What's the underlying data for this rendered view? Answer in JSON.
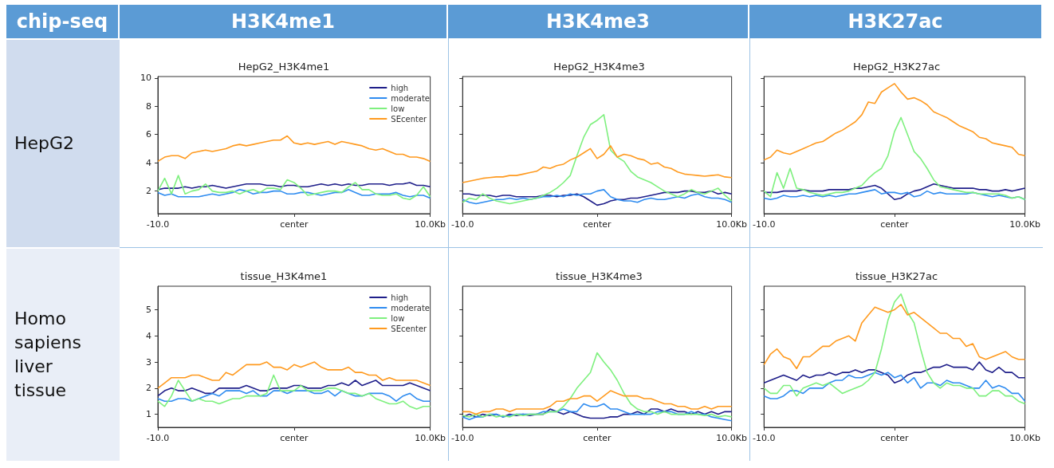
{
  "chart_data": [
    {
      "type": "other",
      "annotations": [
        "chip-seq",
        "H3K4me1",
        "H3K4me3",
        "H3K27ac",
        "HepG2",
        "Homo sapiens liver tissue"
      ]
    },
    {
      "type": "line",
      "title": "HepG2_H3K4me1",
      "legend": "top right",
      "xlim": [
        -10,
        10
      ],
      "xticks": [
        {
          "value": -10,
          "label": "-10.0"
        },
        {
          "value": 0,
          "label": "center"
        },
        {
          "value": 10,
          "label": "10.0Kb"
        }
      ],
      "ylim": [
        0.4,
        10.1
      ],
      "yticks": [
        2,
        4,
        6,
        8,
        10
      ],
      "x": [
        -10,
        -9.5,
        -9,
        -8.5,
        -8,
        -7.5,
        -7,
        -6.5,
        -6,
        -5.5,
        -5,
        -4.5,
        -4,
        -3.5,
        -3,
        -2.5,
        -2,
        -1.5,
        -1,
        -0.5,
        0,
        0.5,
        1,
        1.5,
        2,
        2.5,
        3,
        3.5,
        4,
        4.5,
        5,
        5.5,
        6,
        6.5,
        7,
        7.5,
        8,
        8.5,
        9,
        9.5,
        10
      ],
      "series": [
        {
          "name": "high",
          "color": "#1f1f8a",
          "values": [
            2.1,
            2.2,
            2.2,
            2.2,
            2.3,
            2.2,
            2.3,
            2.3,
            2.4,
            2.3,
            2.2,
            2.3,
            2.4,
            2.5,
            2.5,
            2.5,
            2.4,
            2.4,
            2.3,
            2.4,
            2.4,
            2.3,
            2.3,
            2.4,
            2.5,
            2.4,
            2.5,
            2.4,
            2.5,
            2.4,
            2.4,
            2.5,
            2.5,
            2.5,
            2.4,
            2.5,
            2.5,
            2.6,
            2.4,
            2.4,
            2.3
          ]
        },
        {
          "name": "moderate",
          "color": "#2f8cf0",
          "values": [
            1.9,
            1.7,
            1.8,
            1.6,
            1.6,
            1.6,
            1.6,
            1.7,
            1.8,
            1.7,
            1.8,
            1.9,
            2.1,
            2.0,
            1.8,
            1.9,
            1.9,
            2.0,
            2.0,
            1.8,
            1.8,
            1.9,
            1.9,
            1.8,
            1.7,
            1.8,
            1.9,
            1.9,
            2.1,
            1.9,
            1.7,
            1.7,
            1.8,
            1.8,
            1.8,
            1.9,
            1.7,
            1.6,
            1.7,
            1.7,
            1.5
          ]
        },
        {
          "name": "low",
          "color": "#7ef07e",
          "values": [
            2.0,
            2.9,
            1.8,
            3.1,
            1.8,
            2.0,
            2.1,
            2.5,
            2.0,
            1.9,
            1.9,
            2.0,
            1.8,
            2.0,
            2.1,
            1.9,
            2.2,
            2.2,
            2.1,
            2.8,
            2.6,
            2.2,
            1.7,
            1.8,
            1.9,
            2.0,
            2.0,
            1.9,
            2.3,
            2.6,
            2.1,
            2.1,
            1.8,
            1.7,
            1.7,
            1.8,
            1.5,
            1.4,
            1.7,
            2.3,
            1.6
          ]
        },
        {
          "name": "SEcenter",
          "color": "#ff9a1f",
          "values": [
            4.1,
            4.4,
            4.5,
            4.5,
            4.3,
            4.7,
            4.8,
            4.9,
            4.8,
            4.9,
            5.0,
            5.2,
            5.3,
            5.2,
            5.3,
            5.4,
            5.5,
            5.6,
            5.6,
            5.9,
            5.4,
            5.3,
            5.4,
            5.3,
            5.4,
            5.5,
            5.3,
            5.5,
            5.4,
            5.3,
            5.2,
            5.0,
            4.9,
            5.0,
            4.8,
            4.6,
            4.6,
            4.4,
            4.4,
            4.3,
            4.1
          ]
        }
      ]
    },
    {
      "type": "line",
      "title": "HepG2_H3K4me3",
      "legend": false,
      "tick_labels": "x",
      "xlim": [
        -10,
        10
      ],
      "xticks": [
        {
          "value": -10,
          "label": "-10.0"
        },
        {
          "value": 0,
          "label": "center"
        },
        {
          "value": 10,
          "label": "10.0Kb"
        }
      ],
      "ylim": [
        0.4,
        10.1
      ],
      "yticks": [
        {
          "value": 2,
          "label": null
        },
        {
          "value": 4,
          "label": null
        },
        {
          "value": 6,
          "label": null
        },
        {
          "value": 8,
          "label": null
        },
        {
          "value": 10,
          "label": null
        }
      ],
      "x": [
        -10,
        -9.5,
        -9,
        -8.5,
        -8,
        -7.5,
        -7,
        -6.5,
        -6,
        -5.5,
        -5,
        -4.5,
        -4,
        -3.5,
        -3,
        -2.5,
        -2,
        -1.5,
        -1,
        -0.5,
        0,
        0.5,
        1,
        1.5,
        2,
        2.5,
        3,
        3.5,
        4,
        4.5,
        5,
        5.5,
        6,
        6.5,
        7,
        7.5,
        8,
        8.5,
        9,
        9.5,
        10
      ],
      "series": [
        {
          "color": "#1f1f8a",
          "values": [
            1.8,
            1.8,
            1.7,
            1.7,
            1.7,
            1.6,
            1.7,
            1.7,
            1.6,
            1.6,
            1.6,
            1.6,
            1.7,
            1.7,
            1.6,
            1.7,
            1.7,
            1.8,
            1.6,
            1.3,
            1.0,
            1.1,
            1.3,
            1.4,
            1.4,
            1.5,
            1.5,
            1.6,
            1.7,
            1.8,
            1.9,
            1.9,
            1.9,
            2.0,
            2.0,
            1.9,
            1.9,
            2.0,
            1.8,
            1.9,
            1.8
          ]
        },
        {
          "color": "#2f8cf0",
          "values": [
            1.4,
            1.2,
            1.1,
            1.2,
            1.3,
            1.4,
            1.4,
            1.5,
            1.4,
            1.5,
            1.4,
            1.5,
            1.6,
            1.6,
            1.7,
            1.6,
            1.8,
            1.7,
            1.8,
            1.8,
            2.0,
            2.1,
            1.6,
            1.4,
            1.3,
            1.3,
            1.2,
            1.4,
            1.5,
            1.4,
            1.4,
            1.5,
            1.6,
            1.5,
            1.7,
            1.8,
            1.6,
            1.5,
            1.5,
            1.4,
            1.2
          ]
        },
        {
          "color": "#7ef07e",
          "values": [
            1.2,
            1.5,
            1.4,
            1.8,
            1.5,
            1.3,
            1.2,
            1.1,
            1.2,
            1.3,
            1.4,
            1.5,
            1.7,
            1.9,
            2.2,
            2.6,
            3.1,
            4.5,
            5.8,
            6.7,
            7.0,
            7.4,
            4.9,
            4.4,
            4.1,
            3.4,
            3.0,
            2.8,
            2.6,
            2.3,
            2.0,
            1.8,
            1.6,
            1.8,
            2.1,
            1.9,
            1.8,
            2.0,
            2.2,
            1.7,
            1.3
          ]
        },
        {
          "color": "#ff9a1f",
          "values": [
            2.6,
            2.7,
            2.8,
            2.9,
            2.95,
            3.0,
            3.0,
            3.1,
            3.1,
            3.2,
            3.3,
            3.4,
            3.7,
            3.6,
            3.8,
            3.9,
            4.2,
            4.4,
            4.7,
            5.0,
            4.3,
            4.6,
            5.2,
            4.4,
            4.6,
            4.5,
            4.3,
            4.2,
            3.9,
            4.0,
            3.7,
            3.6,
            3.35,
            3.2,
            3.15,
            3.1,
            3.05,
            3.1,
            3.15,
            3.0,
            2.95
          ]
        }
      ]
    },
    {
      "type": "line",
      "title": "HepG2_H3K27ac",
      "legend": false,
      "tick_labels": "x",
      "xlim": [
        -10,
        10
      ],
      "xticks": [
        {
          "value": -10,
          "label": "-10.0"
        },
        {
          "value": 0,
          "label": "center"
        },
        {
          "value": 10,
          "label": "10.0Kb"
        }
      ],
      "ylim": [
        0.4,
        10.1
      ],
      "yticks": [
        {
          "value": 2,
          "label": null
        },
        {
          "value": 4,
          "label": null
        },
        {
          "value": 6,
          "label": null
        },
        {
          "value": 8,
          "label": null
        },
        {
          "value": 10,
          "label": null
        }
      ],
      "x": [
        -10,
        -9.5,
        -9,
        -8.5,
        -8,
        -7.5,
        -7,
        -6.5,
        -6,
        -5.5,
        -5,
        -4.5,
        -4,
        -3.5,
        -3,
        -2.5,
        -2,
        -1.5,
        -1,
        -0.5,
        0,
        0.5,
        1,
        1.5,
        2,
        2.5,
        3,
        3.5,
        4,
        4.5,
        5,
        5.5,
        6,
        6.5,
        7,
        7.5,
        8,
        8.5,
        9,
        9.5,
        10
      ],
      "series": [
        {
          "color": "#1f1f8a",
          "values": [
            1.9,
            1.9,
            1.9,
            2.0,
            2.0,
            2.0,
            2.1,
            2.0,
            2.0,
            2.0,
            2.1,
            2.1,
            2.1,
            2.1,
            2.2,
            2.2,
            2.3,
            2.4,
            2.2,
            1.8,
            1.4,
            1.5,
            1.8,
            2.0,
            2.1,
            2.3,
            2.5,
            2.4,
            2.3,
            2.2,
            2.2,
            2.2,
            2.2,
            2.1,
            2.1,
            2.0,
            2.0,
            2.1,
            2.0,
            2.1,
            2.2
          ]
        },
        {
          "color": "#2f8cf0",
          "values": [
            1.5,
            1.4,
            1.5,
            1.7,
            1.6,
            1.6,
            1.7,
            1.6,
            1.7,
            1.6,
            1.7,
            1.6,
            1.7,
            1.8,
            1.8,
            1.9,
            2.0,
            2.1,
            1.8,
            1.9,
            1.9,
            1.8,
            1.9,
            1.6,
            1.7,
            2.0,
            1.8,
            1.9,
            1.8,
            1.8,
            1.8,
            1.8,
            1.9,
            1.8,
            1.7,
            1.6,
            1.7,
            1.6,
            1.5,
            1.6,
            1.4
          ]
        },
        {
          "color": "#7ef07e",
          "values": [
            2.0,
            1.6,
            3.3,
            2.2,
            3.6,
            2.2,
            2.1,
            1.9,
            1.8,
            1.7,
            1.8,
            1.9,
            1.9,
            2.0,
            2.2,
            2.4,
            2.9,
            3.3,
            3.6,
            4.5,
            6.2,
            7.2,
            6.0,
            4.8,
            4.3,
            3.6,
            2.8,
            2.3,
            2.2,
            2.1,
            2.0,
            1.9,
            1.9,
            1.8,
            1.8,
            1.8,
            1.8,
            1.7,
            1.5,
            1.6,
            1.4
          ]
        },
        {
          "color": "#ff9a1f",
          "values": [
            4.2,
            4.4,
            4.9,
            4.7,
            4.6,
            4.8,
            5.0,
            5.2,
            5.4,
            5.5,
            5.8,
            6.1,
            6.3,
            6.6,
            6.9,
            7.4,
            8.3,
            8.2,
            9.0,
            9.3,
            9.6,
            9.0,
            8.5,
            8.6,
            8.4,
            8.1,
            7.6,
            7.4,
            7.2,
            6.9,
            6.6,
            6.4,
            6.2,
            5.8,
            5.7,
            5.4,
            5.3,
            5.2,
            5.1,
            4.6,
            4.5
          ]
        }
      ]
    },
    {
      "type": "line",
      "title": "tissue_H3K4me1",
      "legend": "top right",
      "xlim": [
        -10,
        10
      ],
      "xticks": [
        {
          "value": -10,
          "label": "-10.0"
        },
        {
          "value": 0,
          "label": "center"
        },
        {
          "value": 10,
          "label": "10.0Kb"
        }
      ],
      "ylim": [
        0.5,
        5.9
      ],
      "yticks": [
        1,
        2,
        3,
        4,
        5
      ],
      "x": [
        -10,
        -9.5,
        -9,
        -8.5,
        -8,
        -7.5,
        -7,
        -6.5,
        -6,
        -5.5,
        -5,
        -4.5,
        -4,
        -3.5,
        -3,
        -2.5,
        -2,
        -1.5,
        -1,
        -0.5,
        0,
        0.5,
        1,
        1.5,
        2,
        2.5,
        3,
        3.5,
        4,
        4.5,
        5,
        5.5,
        6,
        6.5,
        7,
        7.5,
        8,
        8.5,
        9,
        9.5,
        10
      ],
      "series": [
        {
          "name": "high",
          "color": "#1f1f8a",
          "values": [
            1.7,
            1.9,
            2.0,
            1.9,
            1.9,
            2.0,
            1.9,
            1.8,
            1.8,
            2.0,
            2.0,
            2.0,
            2.0,
            2.1,
            2.0,
            1.9,
            1.9,
            2.0,
            2.0,
            2.0,
            2.1,
            2.1,
            2.0,
            2.0,
            2.0,
            2.1,
            2.1,
            2.2,
            2.1,
            2.3,
            2.1,
            2.2,
            2.3,
            2.1,
            2.1,
            2.1,
            2.1,
            2.2,
            2.1,
            2.0,
            1.9
          ]
        },
        {
          "name": "moderate",
          "color": "#2f8cf0",
          "values": [
            1.6,
            1.5,
            1.5,
            1.6,
            1.6,
            1.5,
            1.6,
            1.7,
            1.8,
            1.7,
            1.9,
            1.9,
            1.9,
            1.8,
            1.9,
            1.7,
            1.7,
            1.9,
            1.9,
            1.8,
            1.9,
            1.9,
            1.9,
            1.8,
            1.8,
            1.9,
            1.7,
            1.9,
            1.8,
            1.7,
            1.7,
            1.8,
            1.8,
            1.8,
            1.7,
            1.5,
            1.7,
            1.8,
            1.6,
            1.5,
            1.5
          ]
        },
        {
          "name": "low",
          "color": "#7ef07e",
          "values": [
            1.5,
            1.3,
            1.7,
            2.3,
            1.9,
            1.5,
            1.6,
            1.5,
            1.5,
            1.4,
            1.5,
            1.6,
            1.6,
            1.7,
            1.7,
            1.7,
            1.8,
            2.5,
            1.9,
            1.9,
            1.9,
            2.1,
            1.9,
            1.9,
            1.9,
            2.0,
            2.0,
            1.9,
            1.8,
            1.8,
            1.7,
            1.8,
            1.6,
            1.5,
            1.4,
            1.4,
            1.5,
            1.3,
            1.2,
            1.3,
            1.3
          ]
        },
        {
          "name": "SEcenter",
          "color": "#ff9a1f",
          "values": [
            2.0,
            2.2,
            2.4,
            2.4,
            2.4,
            2.5,
            2.5,
            2.4,
            2.3,
            2.3,
            2.6,
            2.5,
            2.7,
            2.9,
            2.9,
            2.9,
            3.0,
            2.8,
            2.8,
            2.7,
            2.9,
            2.8,
            2.9,
            3.0,
            2.8,
            2.7,
            2.7,
            2.7,
            2.8,
            2.6,
            2.6,
            2.5,
            2.5,
            2.3,
            2.4,
            2.3,
            2.3,
            2.3,
            2.3,
            2.2,
            2.1
          ]
        }
      ]
    },
    {
      "type": "line",
      "title": "tissue_H3K4me3",
      "legend": false,
      "tick_labels": "x",
      "xlim": [
        -10,
        10
      ],
      "xticks": [
        {
          "value": -10,
          "label": "-10.0"
        },
        {
          "value": 0,
          "label": "center"
        },
        {
          "value": 10,
          "label": "10.0Kb"
        }
      ],
      "ylim": [
        0.5,
        5.9
      ],
      "yticks": [
        {
          "value": 1,
          "label": null
        },
        {
          "value": 2,
          "label": null
        },
        {
          "value": 3,
          "label": null
        },
        {
          "value": 4,
          "label": null
        },
        {
          "value": 5,
          "label": null
        }
      ],
      "x": [
        -10,
        -9.5,
        -9,
        -8.5,
        -8,
        -7.5,
        -7,
        -6.5,
        -6,
        -5.5,
        -5,
        -4.5,
        -4,
        -3.5,
        -3,
        -2.5,
        -2,
        -1.5,
        -1,
        -0.5,
        0,
        0.5,
        1,
        1.5,
        2,
        2.5,
        3,
        3.5,
        4,
        4.5,
        5,
        5.5,
        6,
        6.5,
        7,
        7.5,
        8,
        8.5,
        9,
        9.5,
        10
      ],
      "series": [
        {
          "color": "#1f1f8a",
          "values": [
            0.9,
            1.0,
            0.9,
            1.0,
            0.95,
            1.0,
            0.9,
            1.0,
            0.95,
            1.0,
            0.95,
            1.0,
            1.0,
            1.2,
            1.1,
            1.0,
            1.1,
            1.0,
            0.9,
            0.85,
            0.85,
            0.85,
            0.9,
            0.9,
            1.0,
            1.0,
            1.1,
            1.0,
            1.2,
            1.2,
            1.1,
            1.2,
            1.1,
            1.1,
            1.0,
            1.1,
            1.0,
            1.1,
            1.0,
            1.1,
            1.1
          ]
        },
        {
          "color": "#2f8cf0",
          "values": [
            0.9,
            0.8,
            0.9,
            0.9,
            1.0,
            1.0,
            0.9,
            0.95,
            1.0,
            1.0,
            1.0,
            1.0,
            1.1,
            1.1,
            1.1,
            1.2,
            1.1,
            1.1,
            1.4,
            1.3,
            1.3,
            1.4,
            1.2,
            1.2,
            1.1,
            1.0,
            1.0,
            1.0,
            1.0,
            1.1,
            1.1,
            1.1,
            1.0,
            1.0,
            1.1,
            1.0,
            1.0,
            0.9,
            0.85,
            0.8,
            0.75
          ]
        },
        {
          "color": "#7ef07e",
          "values": [
            0.95,
            0.9,
            1.0,
            0.9,
            1.0,
            0.9,
            0.95,
            0.9,
            1.0,
            0.95,
            1.0,
            1.0,
            1.0,
            1.1,
            1.1,
            1.3,
            1.6,
            2.0,
            2.3,
            2.6,
            3.35,
            3.0,
            2.7,
            2.3,
            1.8,
            1.4,
            1.2,
            1.1,
            1.1,
            1.0,
            1.1,
            1.0,
            1.0,
            1.0,
            1.0,
            1.0,
            0.95,
            1.0,
            0.9,
            0.95,
            0.9
          ]
        },
        {
          "color": "#ff9a1f",
          "values": [
            1.1,
            1.1,
            1.0,
            1.1,
            1.1,
            1.2,
            1.2,
            1.1,
            1.2,
            1.2,
            1.2,
            1.2,
            1.2,
            1.3,
            1.5,
            1.5,
            1.6,
            1.6,
            1.7,
            1.7,
            1.5,
            1.7,
            1.9,
            1.8,
            1.7,
            1.7,
            1.7,
            1.6,
            1.6,
            1.5,
            1.4,
            1.4,
            1.3,
            1.3,
            1.2,
            1.2,
            1.3,
            1.2,
            1.3,
            1.3,
            1.3
          ]
        }
      ]
    },
    {
      "type": "line",
      "title": "tissue_H3K27ac",
      "legend": false,
      "tick_labels": "x",
      "xlim": [
        -10,
        10
      ],
      "xticks": [
        {
          "value": -10,
          "label": "-10.0"
        },
        {
          "value": 0,
          "label": "center"
        },
        {
          "value": 10,
          "label": "10.0Kb"
        }
      ],
      "ylim": [
        0.5,
        5.9
      ],
      "yticks": [
        {
          "value": 1,
          "label": null
        },
        {
          "value": 2,
          "label": null
        },
        {
          "value": 3,
          "label": null
        },
        {
          "value": 4,
          "label": null
        },
        {
          "value": 5,
          "label": null
        }
      ],
      "x": [
        -10,
        -9.5,
        -9,
        -8.5,
        -8,
        -7.5,
        -7,
        -6.5,
        -6,
        -5.5,
        -5,
        -4.5,
        -4,
        -3.5,
        -3,
        -2.5,
        -2,
        -1.5,
        -1,
        -0.5,
        0,
        0.5,
        1,
        1.5,
        2,
        2.5,
        3,
        3.5,
        4,
        4.5,
        5,
        5.5,
        6,
        6.5,
        7,
        7.5,
        8,
        8.5,
        9,
        9.5,
        10
      ],
      "series": [
        {
          "color": "#1f1f8a",
          "values": [
            2.2,
            2.3,
            2.4,
            2.5,
            2.4,
            2.3,
            2.5,
            2.4,
            2.5,
            2.5,
            2.6,
            2.5,
            2.6,
            2.6,
            2.7,
            2.6,
            2.7,
            2.7,
            2.6,
            2.5,
            2.2,
            2.3,
            2.5,
            2.6,
            2.6,
            2.7,
            2.8,
            2.8,
            2.9,
            2.8,
            2.8,
            2.8,
            2.7,
            3.0,
            2.7,
            2.6,
            2.8,
            2.6,
            2.6,
            2.4,
            2.4
          ]
        },
        {
          "color": "#2f8cf0",
          "values": [
            1.7,
            1.6,
            1.6,
            1.7,
            1.9,
            1.9,
            1.8,
            2.0,
            2.0,
            2.0,
            2.2,
            2.3,
            2.3,
            2.5,
            2.4,
            2.4,
            2.5,
            2.6,
            2.5,
            2.6,
            2.4,
            2.5,
            2.2,
            2.4,
            2.0,
            2.2,
            2.2,
            2.1,
            2.3,
            2.2,
            2.2,
            2.1,
            2.0,
            2.0,
            2.3,
            2.0,
            2.1,
            2.0,
            1.8,
            1.8,
            1.5
          ]
        },
        {
          "color": "#7ef07e",
          "values": [
            2.0,
            1.8,
            1.8,
            2.1,
            2.1,
            1.7,
            2.0,
            2.1,
            2.2,
            2.1,
            2.2,
            2.0,
            1.8,
            1.9,
            2.0,
            2.1,
            2.3,
            2.6,
            3.5,
            4.6,
            5.3,
            5.6,
            4.9,
            4.5,
            3.5,
            2.6,
            2.2,
            2.0,
            2.2,
            2.1,
            2.1,
            2.0,
            2.0,
            1.7,
            1.7,
            1.9,
            1.9,
            1.7,
            1.7,
            1.5,
            1.4
          ]
        },
        {
          "color": "#ff9a1f",
          "values": [
            2.9,
            3.3,
            3.5,
            3.2,
            3.1,
            2.75,
            3.2,
            3.2,
            3.4,
            3.6,
            3.6,
            3.8,
            3.9,
            4.0,
            3.8,
            4.5,
            4.8,
            5.1,
            5.0,
            4.9,
            5.0,
            5.2,
            4.8,
            4.9,
            4.7,
            4.5,
            4.3,
            4.1,
            4.1,
            3.9,
            3.9,
            3.6,
            3.7,
            3.2,
            3.1,
            3.2,
            3.3,
            3.4,
            3.2,
            3.1,
            3.1
          ]
        }
      ]
    }
  ]
}
